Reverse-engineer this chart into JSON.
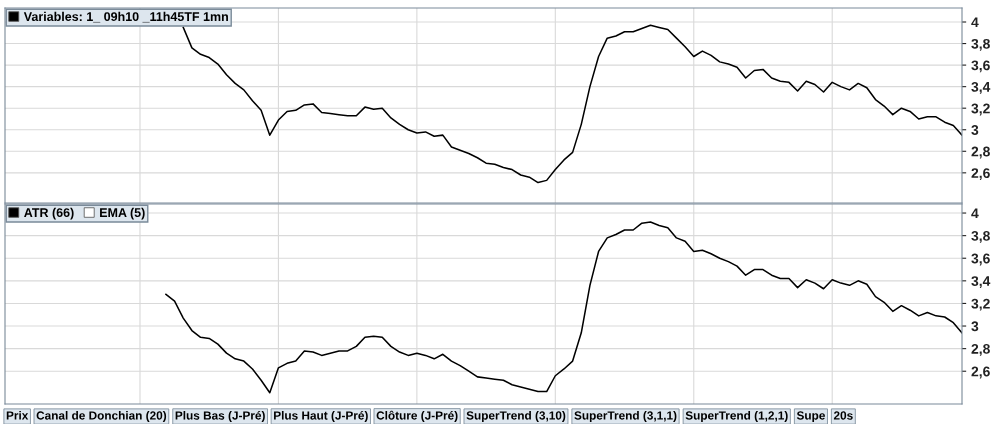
{
  "chart_data": [
    {
      "type": "line",
      "categories": [
        null,
        null,
        null,
        null,
        null,
        null,
        null,
        null,
        null,
        null,
        null,
        null,
        null,
        null,
        null,
        null,
        null,
        null,
        null,
        null,
        null,
        null,
        null,
        null,
        null,
        null,
        null,
        null,
        null,
        null,
        null,
        null,
        null,
        null,
        null,
        null,
        null,
        null,
        null,
        null,
        null,
        null,
        null,
        null,
        null,
        null,
        null,
        null,
        null,
        null,
        null,
        null,
        null,
        null,
        null,
        null,
        null,
        null,
        null,
        null,
        null,
        null,
        null,
        null,
        null,
        null,
        null,
        null,
        null,
        null,
        null,
        null,
        null,
        null,
        null,
        null,
        null,
        null,
        null,
        null,
        null,
        null,
        null,
        null,
        null,
        null,
        null,
        null,
        null,
        null,
        null,
        null,
        null,
        null,
        null,
        null,
        null,
        null,
        null,
        null,
        null,
        null,
        null,
        null,
        null,
        null,
        null,
        null,
        null,
        null,
        null
      ],
      "series": [
        {
          "name": "Variables: 1_ 09h10 _11h45TF 1mn",
          "color": "#000000",
          "values": [
            null,
            null,
            null,
            null,
            null,
            null,
            null,
            null,
            null,
            null,
            null,
            null,
            null,
            null,
            null,
            null,
            null,
            null,
            null,
            null,
            3.95,
            3.76,
            3.7,
            3.67,
            3.61,
            3.51,
            3.43,
            3.37,
            3.27,
            3.18,
            2.95,
            3.09,
            3.17,
            3.18,
            3.23,
            3.24,
            3.16,
            3.15,
            3.14,
            3.13,
            3.13,
            3.21,
            3.19,
            3.2,
            3.11,
            3.05,
            3.0,
            2.97,
            2.98,
            2.94,
            2.95,
            2.84,
            2.81,
            2.78,
            2.74,
            2.69,
            2.68,
            2.65,
            2.63,
            2.58,
            2.56,
            2.51,
            2.53,
            2.63,
            2.72,
            2.79,
            3.05,
            3.4,
            3.68,
            3.85,
            3.87,
            3.91,
            3.91,
            3.94,
            3.97,
            3.95,
            3.93,
            3.85,
            3.77,
            3.68,
            3.73,
            3.69,
            3.63,
            3.61,
            3.58,
            3.48,
            3.55,
            3.56,
            3.48,
            3.45,
            3.44,
            3.36,
            3.45,
            3.42,
            3.35,
            3.44,
            3.4,
            3.37,
            3.43,
            3.39,
            3.28,
            3.22,
            3.14,
            3.2,
            3.17,
            3.1,
            3.12,
            3.12,
            3.07,
            3.04,
            2.95
          ]
        }
      ],
      "ylim": [
        2.32,
        4.13
      ],
      "yticks": [
        {
          "value": 2.6,
          "label": "2,6"
        },
        {
          "value": 2.8,
          "label": "2,8"
        },
        3,
        {
          "value": 3.2,
          "label": "3,2"
        },
        {
          "value": 3.4,
          "label": "3,4"
        },
        {
          "value": 3.6,
          "label": "3,6"
        },
        {
          "value": 3.8,
          "label": "3,8"
        },
        4
      ],
      "grid": true,
      "legend": "top left",
      "tick_labels": "y"
    },
    {
      "type": "line",
      "categories": [
        null,
        null,
        null,
        null,
        null,
        null,
        null,
        null,
        null,
        null,
        null,
        null,
        null,
        null,
        null,
        null,
        null,
        null,
        null,
        null,
        null,
        null,
        null,
        null,
        null,
        null,
        null,
        null,
        null,
        null,
        null,
        null,
        null,
        null,
        null,
        null,
        null,
        null,
        null,
        null,
        null,
        null,
        null,
        null,
        null,
        null,
        null,
        null,
        null,
        null,
        null,
        null,
        null,
        null,
        null,
        null,
        null,
        null,
        null,
        null,
        null,
        null,
        null,
        null,
        null,
        null,
        null,
        null,
        null,
        null,
        null,
        null,
        null,
        null,
        null,
        null,
        null,
        null,
        null,
        null,
        null,
        null,
        null,
        null,
        null,
        null,
        null,
        null,
        null,
        null,
        null,
        null,
        null,
        null,
        null,
        null,
        null,
        null,
        null,
        null,
        null,
        null,
        null,
        null,
        null,
        null,
        null,
        null,
        null,
        null,
        null
      ],
      "series": [
        {
          "name": "ATR (66)",
          "color": "#000000",
          "values": [
            null,
            null,
            null,
            null,
            null,
            null,
            null,
            null,
            null,
            null,
            null,
            null,
            null,
            null,
            null,
            null,
            null,
            null,
            3.28,
            3.22,
            3.07,
            2.96,
            2.9,
            2.89,
            2.84,
            2.76,
            2.71,
            2.69,
            2.62,
            2.52,
            2.41,
            2.63,
            2.67,
            2.69,
            2.78,
            2.77,
            2.74,
            2.76,
            2.78,
            2.78,
            2.82,
            2.9,
            2.91,
            2.9,
            2.82,
            2.77,
            2.74,
            2.76,
            2.74,
            2.71,
            2.75,
            2.69,
            2.65,
            2.6,
            2.55,
            2.54,
            2.53,
            2.52,
            2.48,
            2.46,
            2.44,
            2.42,
            2.42,
            2.56,
            2.62,
            2.69,
            2.94,
            3.36,
            3.66,
            3.78,
            3.81,
            3.85,
            3.85,
            3.91,
            3.92,
            3.89,
            3.87,
            3.78,
            3.75,
            3.66,
            3.67,
            3.64,
            3.6,
            3.57,
            3.53,
            3.45,
            3.5,
            3.5,
            3.45,
            3.42,
            3.42,
            3.34,
            3.41,
            3.38,
            3.33,
            3.41,
            3.38,
            3.36,
            3.4,
            3.37,
            3.26,
            3.21,
            3.13,
            3.18,
            3.14,
            3.09,
            3.12,
            3.09,
            3.08,
            3.03,
            2.94
          ]
        },
        {
          "name": "EMA (5)",
          "color": "#ffffff",
          "values": [
            null,
            null,
            null,
            null,
            null,
            null,
            null,
            null,
            null,
            null,
            null,
            null,
            null,
            null,
            null,
            null,
            null,
            null,
            null,
            null,
            null,
            null,
            null,
            null,
            null,
            null,
            null,
            null,
            null,
            null,
            null,
            null,
            null,
            null,
            null,
            null,
            null,
            null,
            null,
            null,
            null,
            null,
            null,
            null,
            null,
            null,
            null,
            null,
            null,
            null,
            null,
            null,
            null,
            null,
            null,
            null,
            null,
            null,
            null,
            null,
            null,
            null,
            null,
            null,
            null,
            null,
            null,
            null,
            null,
            null,
            null,
            null,
            null,
            null,
            null,
            null,
            null,
            null,
            null,
            null,
            null,
            null,
            null,
            null,
            null,
            null,
            null,
            null,
            null,
            null,
            null,
            null,
            null,
            null,
            null,
            null,
            null,
            null,
            null,
            null,
            null,
            null,
            null,
            null,
            null,
            null,
            null,
            null,
            null,
            null,
            null
          ]
        }
      ],
      "ylim": [
        2.31,
        4.08
      ],
      "yticks": [
        {
          "value": 2.6,
          "label": "2,6"
        },
        {
          "value": 2.8,
          "label": "2,8"
        },
        3,
        {
          "value": 3.2,
          "label": "3,2"
        },
        {
          "value": 3.4,
          "label": "3,4"
        },
        {
          "value": 3.6,
          "label": "3,6"
        },
        {
          "value": 3.8,
          "label": "3,8"
        },
        4
      ],
      "grid": true,
      "legend": "top left",
      "tick_labels": "y",
      "annotations": [
        "Prix",
        "Canal de Donchian (20)",
        "Plus Bas (J-Pré)",
        "Plus Haut (J-Pré)",
        "Clôture (J-Pré)",
        "SuperTrend (3,10)",
        "SuperTrend (3,1,1)",
        "SuperTrend (1,2,1)",
        "Supe",
        "20s"
      ]
    }
  ]
}
